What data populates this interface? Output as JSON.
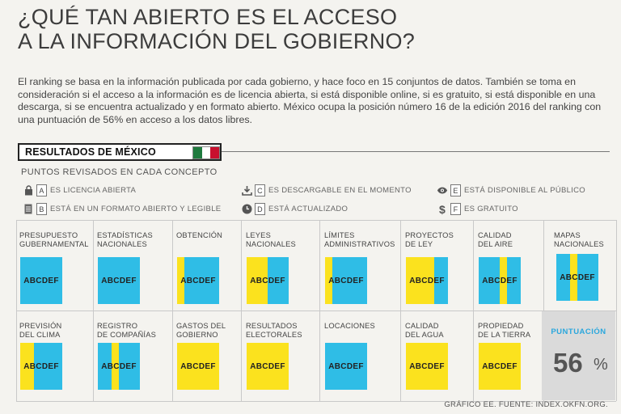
{
  "header": {
    "title_line1": "¿QUÉ TAN ABIERTO ES EL ACCESO",
    "title_line2": "A LA INFORMACIÓN DEL GOBIERNO?",
    "intro": "El ranking se basa en la información publicada por cada gobierno, y hace foco en 15 conjuntos de datos. También se toma en consideración si el acceso a la información es de licencia abierta, si está disponible online, si es gratuito, si está disponible en una descarga, si se encuentra actualizado y en formato abierto. México ocupa la posición número 16 de la edición 2016 del ranking con una puntuación de 56% en acceso a los datos libres."
  },
  "section": {
    "results_label": "RESULTADOS DE MÉXICO",
    "subtitle": "PUNTOS REVISADOS EN CADA CONCEPTO",
    "flag_colors": [
      "#1f7a3e",
      "#ffffff",
      "#c8102e"
    ]
  },
  "legend": [
    {
      "icon": "lock-icon",
      "letter": "A",
      "text": "ES LICENCIA ABIERTA"
    },
    {
      "icon": "document-icon",
      "letter": "B",
      "text": "ESTÁ EN UN FORMATO ABIERTO Y LEGIBLE"
    },
    {
      "icon": "download-icon",
      "letter": "C",
      "text": "ES DESCARGABLE EN EL MOMENTO"
    },
    {
      "icon": "clock-icon",
      "letter": "D",
      "text": "ESTÁ ACTUALIZADO"
    },
    {
      "icon": "eye-icon",
      "letter": "E",
      "text": "ESTÁ DISPONIBLE AL PÚBLICO"
    },
    {
      "icon": "dollar-icon",
      "letter": "F",
      "text": "ES GRATUITO"
    }
  ],
  "colors": {
    "blue": "#2fbde6",
    "yellow": "#fbe21e"
  },
  "scores_text": "ABCDEF",
  "categories": [
    {
      "label": "PRESUPUESTO\nGUBERNAMENTAL",
      "bands": [
        "b"
      ]
    },
    {
      "label": "ESTADÍSTICAS\nNACIONALES",
      "bands": [
        "b"
      ]
    },
    {
      "label": "OBTENCIÓN",
      "bands": [
        "y",
        "b",
        "b",
        "b",
        "b",
        "b"
      ]
    },
    {
      "label": "LEYES\nNACIONALES",
      "bands": [
        "y",
        "y",
        "y",
        "b",
        "b",
        "b"
      ]
    },
    {
      "label": "LÍMITES\nADMINISTRATIVOS",
      "bands": [
        "y",
        "b",
        "b",
        "b",
        "b",
        "b"
      ]
    },
    {
      "label": "PROYECTOS\nDE LEY",
      "bands": [
        "y",
        "y",
        "y",
        "y",
        "b",
        "b"
      ]
    },
    {
      "label": "CALIDAD\nDEL AIRE",
      "bands": [
        "b",
        "b",
        "b",
        "y",
        "b",
        "b"
      ]
    },
    {
      "label": "MAPAS\nNACIONALES",
      "bands": [
        "b",
        "b",
        "y",
        "b",
        "b",
        "b"
      ]
    },
    {
      "label": "PREVISIÓN\nDEL CLIMA",
      "bands": [
        "y",
        "y",
        "b",
        "b",
        "b",
        "b"
      ]
    },
    {
      "label": "REGISTRO\nDE COMPAÑÍAS",
      "bands": [
        "b",
        "b",
        "y",
        "b",
        "b",
        "b"
      ]
    },
    {
      "label": "GASTOS DEL\nGOBIERNO",
      "bands": [
        "y"
      ]
    },
    {
      "label": "RESULTADOS\nELECTORALES",
      "bands": [
        "y"
      ]
    },
    {
      "label": "LOCACIONES",
      "bands": [
        "b"
      ]
    },
    {
      "label": "CALIDAD\nDEL AGUA",
      "bands": [
        "y"
      ]
    },
    {
      "label": "PROPIEDAD\nDE LA TIERRA",
      "bands": [
        "y"
      ]
    }
  ],
  "puntuacion": {
    "label": "PUNTUACIÓN",
    "value": "56",
    "unit": "%"
  },
  "footer": "GRÁFICO EE. FUENTE: INDEX.OKFN.ORG."
}
